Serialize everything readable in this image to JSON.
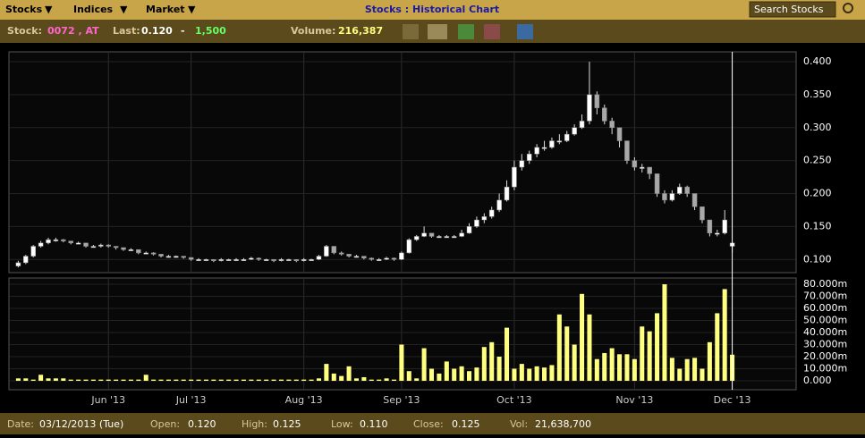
{
  "toolbar": {
    "menus": [
      "Stocks",
      "Indices",
      "Market"
    ],
    "title": "Stocks : Historical Chart",
    "search": "Search Stocks"
  },
  "quote_bar": {
    "stock_label": "Stock:",
    "stock": "0072 , AT",
    "last_label": "Last:",
    "last": "0.120",
    "change": "-",
    "last_volume": "1,500",
    "volume_label": "Volume:",
    "volume": "216,387"
  },
  "status_bar": {
    "date_label": "Date:",
    "date": "03/12/2013 (Tue)",
    "open_label": "Open:",
    "open": "0.120",
    "high_label": "High:",
    "high": "0.125",
    "low_label": "Low:",
    "low": "0.110",
    "close_label": "Close:",
    "close": "0.125",
    "vol_label": "Vol:",
    "vol": "21,638,700"
  },
  "chart_data": [
    {
      "type": "candlestick",
      "color": "#ffffff",
      "down_color": "#a8a8a8",
      "grid": true,
      "ylim": [
        0.08,
        0.415
      ],
      "yticks": [
        {
          "value": 0.1,
          "label": "0.100"
        },
        {
          "value": 0.15,
          "label": "0.150"
        },
        {
          "value": 0.2,
          "label": "0.200"
        },
        {
          "value": 0.25,
          "label": "0.250"
        },
        {
          "value": 0.3,
          "label": "0.300"
        },
        {
          "value": 0.35,
          "label": "0.350"
        },
        {
          "value": 0.4,
          "label": "0.400"
        }
      ],
      "open": [
        0.09,
        0.095,
        0.105,
        0.12,
        0.125,
        0.13,
        0.13,
        0.128,
        0.125,
        0.125,
        0.12,
        0.12,
        0.122,
        0.12,
        0.118,
        0.115,
        0.115,
        0.11,
        0.11,
        0.108,
        0.105,
        0.105,
        0.105,
        0.103,
        0.1,
        0.1,
        0.1,
        0.098,
        0.1,
        0.1,
        0.1,
        0.1,
        0.102,
        0.1,
        0.1,
        0.098,
        0.1,
        0.1,
        0.098,
        0.1,
        0.1,
        0.105,
        0.12,
        0.11,
        0.108,
        0.105,
        0.105,
        0.102,
        0.1,
        0.1,
        0.102,
        0.1,
        0.11,
        0.13,
        0.135,
        0.14,
        0.135,
        0.135,
        0.135,
        0.135,
        0.14,
        0.15,
        0.16,
        0.165,
        0.175,
        0.19,
        0.21,
        0.24,
        0.25,
        0.26,
        0.27,
        0.27,
        0.28,
        0.28,
        0.29,
        0.3,
        0.31,
        0.35,
        0.33,
        0.31,
        0.3,
        0.28,
        0.25,
        0.24,
        0.24,
        0.23,
        0.2,
        0.19,
        0.2,
        0.21,
        0.2,
        0.18,
        0.16,
        0.14,
        0.14,
        0.12
      ],
      "high": [
        0.098,
        0.107,
        0.122,
        0.128,
        0.133,
        0.133,
        0.131,
        0.128,
        0.127,
        0.125,
        0.122,
        0.124,
        0.123,
        0.12,
        0.118,
        0.117,
        0.115,
        0.112,
        0.111,
        0.108,
        0.107,
        0.106,
        0.105,
        0.103,
        0.102,
        0.101,
        0.1,
        0.102,
        0.101,
        0.102,
        0.102,
        0.104,
        0.103,
        0.101,
        0.1,
        0.102,
        0.101,
        0.1,
        0.102,
        0.101,
        0.107,
        0.122,
        0.12,
        0.112,
        0.108,
        0.107,
        0.105,
        0.103,
        0.102,
        0.104,
        0.103,
        0.112,
        0.132,
        0.137,
        0.15,
        0.14,
        0.137,
        0.137,
        0.137,
        0.145,
        0.155,
        0.165,
        0.17,
        0.18,
        0.2,
        0.22,
        0.25,
        0.26,
        0.265,
        0.275,
        0.28,
        0.285,
        0.29,
        0.295,
        0.305,
        0.32,
        0.4,
        0.355,
        0.335,
        0.315,
        0.3,
        0.28,
        0.255,
        0.245,
        0.24,
        0.23,
        0.205,
        0.205,
        0.215,
        0.212,
        0.2,
        0.18,
        0.16,
        0.145,
        0.175,
        0.125
      ],
      "low": [
        0.088,
        0.093,
        0.103,
        0.118,
        0.123,
        0.127,
        0.126,
        0.123,
        0.123,
        0.118,
        0.118,
        0.118,
        0.118,
        0.115,
        0.113,
        0.113,
        0.108,
        0.108,
        0.106,
        0.103,
        0.103,
        0.103,
        0.101,
        0.098,
        0.098,
        0.098,
        0.096,
        0.097,
        0.099,
        0.099,
        0.099,
        0.099,
        0.098,
        0.098,
        0.096,
        0.097,
        0.098,
        0.096,
        0.097,
        0.099,
        0.099,
        0.104,
        0.108,
        0.106,
        0.103,
        0.103,
        0.1,
        0.098,
        0.098,
        0.099,
        0.098,
        0.099,
        0.109,
        0.128,
        0.134,
        0.133,
        0.133,
        0.133,
        0.133,
        0.134,
        0.139,
        0.148,
        0.155,
        0.162,
        0.172,
        0.188,
        0.205,
        0.235,
        0.245,
        0.255,
        0.265,
        0.268,
        0.275,
        0.278,
        0.288,
        0.298,
        0.305,
        0.32,
        0.305,
        0.29,
        0.27,
        0.245,
        0.235,
        0.232,
        0.222,
        0.195,
        0.185,
        0.188,
        0.198,
        0.195,
        0.175,
        0.155,
        0.135,
        0.135,
        0.138,
        0.11
      ],
      "close": [
        0.095,
        0.105,
        0.12,
        0.125,
        0.13,
        0.13,
        0.128,
        0.125,
        0.125,
        0.12,
        0.12,
        0.122,
        0.12,
        0.118,
        0.115,
        0.115,
        0.11,
        0.11,
        0.108,
        0.105,
        0.105,
        0.105,
        0.103,
        0.1,
        0.1,
        0.1,
        0.098,
        0.1,
        0.1,
        0.1,
        0.1,
        0.102,
        0.1,
        0.1,
        0.098,
        0.1,
        0.1,
        0.098,
        0.1,
        0.1,
        0.105,
        0.12,
        0.11,
        0.108,
        0.105,
        0.105,
        0.102,
        0.1,
        0.1,
        0.102,
        0.1,
        0.11,
        0.13,
        0.135,
        0.14,
        0.135,
        0.135,
        0.135,
        0.135,
        0.14,
        0.15,
        0.16,
        0.165,
        0.175,
        0.19,
        0.21,
        0.24,
        0.25,
        0.26,
        0.27,
        0.27,
        0.28,
        0.28,
        0.29,
        0.3,
        0.31,
        0.35,
        0.33,
        0.31,
        0.3,
        0.28,
        0.25,
        0.24,
        0.24,
        0.23,
        0.2,
        0.19,
        0.2,
        0.21,
        0.2,
        0.18,
        0.16,
        0.14,
        0.14,
        0.16,
        0.125
      ]
    },
    {
      "type": "bar",
      "color": "#ffff80",
      "grid": true,
      "xlim": [
        -1,
        103.5
      ],
      "xticks": [
        {
          "value": 12,
          "label": "Jun '13"
        },
        {
          "value": 23,
          "label": "Jul '13"
        },
        {
          "value": 38,
          "label": "Aug '13"
        },
        {
          "value": 51,
          "label": "Sep '13"
        },
        {
          "value": 66,
          "label": "Oct '13"
        },
        {
          "value": 82,
          "label": "Nov '13"
        },
        {
          "value": 95,
          "label": "Dec '13"
        }
      ],
      "ylim": [
        -7.4,
        85.2
      ],
      "yticks": [
        {
          "value": 0,
          "label": "0.000"
        },
        {
          "value": 10,
          "label": "10.000m"
        },
        {
          "value": 20,
          "label": "20.000m"
        },
        {
          "value": 30,
          "label": "30.000m"
        },
        {
          "value": 40,
          "label": "40.000m"
        },
        {
          "value": 50,
          "label": "50.000m"
        },
        {
          "value": 60,
          "label": "60.000m"
        },
        {
          "value": 70,
          "label": "70.000m"
        },
        {
          "value": 80,
          "label": "80.000m"
        }
      ],
      "values": [
        2,
        2,
        1,
        5,
        2,
        2,
        2,
        1,
        1,
        1,
        1,
        1,
        1,
        1,
        1,
        1,
        1,
        5,
        1,
        1,
        1,
        1,
        1,
        1,
        1,
        1,
        1,
        1,
        1,
        1,
        1,
        1,
        1,
        1,
        1,
        1,
        1,
        1,
        1,
        1,
        2,
        14,
        6,
        4,
        12,
        2,
        3,
        1,
        1,
        2,
        1,
        30,
        8,
        2,
        27,
        10,
        6,
        16,
        10,
        12,
        8,
        11,
        28,
        32,
        20,
        44,
        10,
        14,
        10,
        12,
        11,
        13,
        55,
        45,
        30,
        72,
        55,
        18,
        23,
        27,
        22,
        22,
        18,
        45,
        41,
        56,
        80,
        19,
        10,
        18,
        19,
        10,
        32,
        56,
        76,
        21.6387
      ]
    }
  ]
}
